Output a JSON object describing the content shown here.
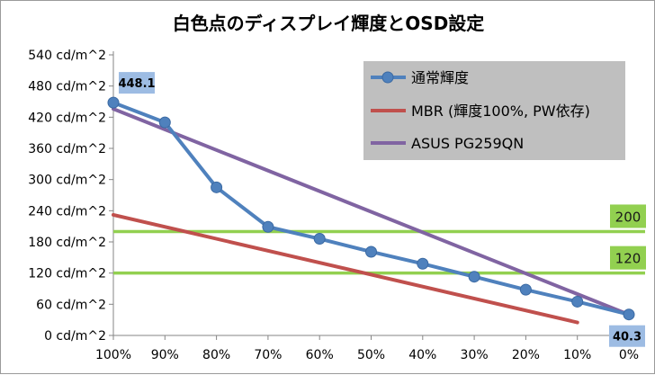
{
  "chart_data": {
    "type": "line",
    "title": "白色点のディスプレイ輝度とOSD設定",
    "x_tick_labels": [
      "100%",
      "90%",
      "80%",
      "70%",
      "60%",
      "50%",
      "40%",
      "30%",
      "20%",
      "10%",
      "0%"
    ],
    "x": [
      100,
      90,
      80,
      70,
      60,
      50,
      40,
      30,
      20,
      10,
      0
    ],
    "y_tick_labels": [
      "0 cd/m^2",
      "60 cd/m^2",
      "120 cd/m^2",
      "180 cd/m^2",
      "240 cd/m^2",
      "300 cd/m^2",
      "360 cd/m^2",
      "420 cd/m^2",
      "480 cd/m^2",
      "540 cd/m^2"
    ],
    "ylim": [
      0,
      540
    ],
    "grid": false,
    "legend_position": "top-right",
    "series": [
      {
        "name": "通常輝度",
        "color": "#4f81bd",
        "marker": "circle",
        "x": [
          100,
          90,
          80,
          70,
          60,
          50,
          40,
          30,
          20,
          10,
          0
        ],
        "values": [
          448.1,
          410,
          285,
          209,
          186,
          161,
          138,
          113,
          88,
          65,
          40.3
        ]
      },
      {
        "name": "MBR (輝度100%, PW依存)",
        "color": "#c0504d",
        "marker": "none",
        "x": [
          100,
          10
        ],
        "values": [
          232,
          25
        ]
      },
      {
        "name": "ASUS PG259QN",
        "color": "#8064a2",
        "marker": "none",
        "x": [
          100,
          0
        ],
        "values": [
          436,
          40
        ]
      }
    ],
    "reference_lines": [
      {
        "label": "200",
        "value": 200,
        "color": "#92d050"
      },
      {
        "label": "120",
        "value": 120,
        "color": "#92d050"
      }
    ],
    "data_labels": [
      {
        "text": "448.1",
        "series": 0,
        "point": 0
      },
      {
        "text": "40.3",
        "series": 0,
        "point": 10
      }
    ]
  }
}
